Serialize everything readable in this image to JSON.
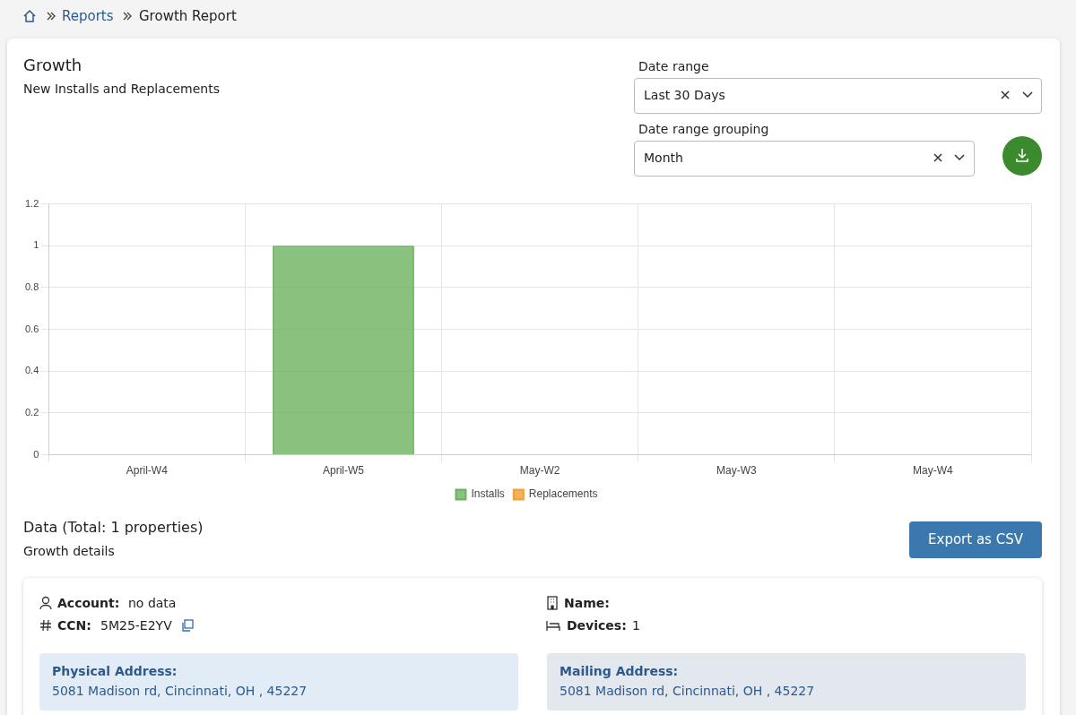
{
  "chart_data": [
    {
      "type": "bar",
      "title": "Growth",
      "subtitle": "New Installs and Replacements",
      "categories": [
        "April-W4",
        "April-W5",
        "May-W2",
        "May-W3",
        "May-W4"
      ],
      "stacked": true,
      "series": [
        {
          "name": "Installs",
          "color": "#6cb25f",
          "values": [
            0,
            1,
            0,
            0,
            0
          ]
        },
        {
          "name": "Replacements",
          "color": "#f0a035",
          "values": [
            0,
            0,
            0,
            0,
            0
          ]
        }
      ],
      "ylim": [
        0,
        1.2
      ],
      "yticks": [
        0,
        0.2,
        0.4,
        0.6,
        0.8,
        1,
        1.2
      ],
      "grid": true,
      "legend": "bottom"
    },
    {
      "type": "other",
      "annotations": [
        "Reports",
        "Growth Report",
        "Date range",
        "Last 30 Days",
        "Date range grouping",
        "Month",
        "Data (Total: 1 properties)",
        "Growth details",
        "Export as CSV",
        "Account:",
        "no data",
        "CCN:",
        "5M25-E2YV",
        "Name:",
        "Devices:",
        "1",
        "Physical Address:",
        "5081 Madison rd, Cincinnati, OH , 45227",
        "Mailing Address:",
        "5081 Madison rd, Cincinnati, OH , 45227"
      ]
    }
  ]
}
